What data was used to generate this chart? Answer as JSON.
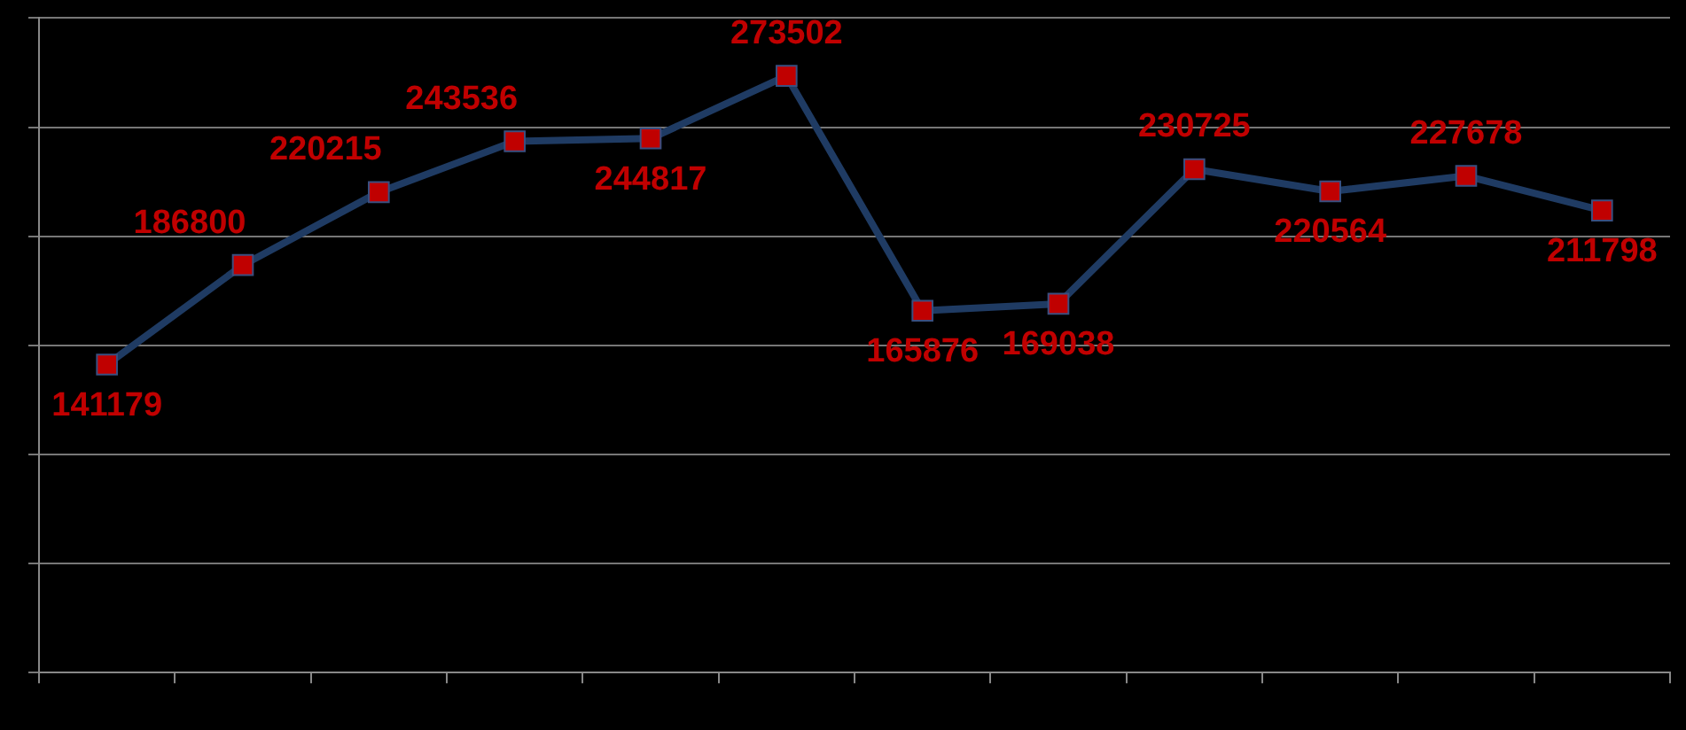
{
  "chart_data": {
    "type": "line",
    "categories": [
      null,
      null,
      null,
      null,
      null,
      null,
      null,
      null,
      null,
      null,
      null,
      null
    ],
    "series": [
      {
        "color": "#1f3b63",
        "values": [
          141179,
          186800,
          220215,
          243536,
          244817,
          273502,
          165876,
          169038,
          230725,
          220564,
          227678,
          211798
        ]
      }
    ],
    "ylim": [
      0,
      300000
    ],
    "yticks": [
      {
        "value": 0,
        "label": null
      },
      {
        "value": 50000,
        "label": null
      },
      {
        "value": 100000,
        "label": null
      },
      {
        "value": 150000,
        "label": null
      },
      {
        "value": 200000,
        "label": null
      },
      {
        "value": 250000,
        "label": null
      },
      {
        "value": 300000,
        "label": null
      }
    ],
    "grid": "y",
    "marker": "square",
    "line_style": "solid",
    "data_labels": true,
    "legend": false
  }
}
